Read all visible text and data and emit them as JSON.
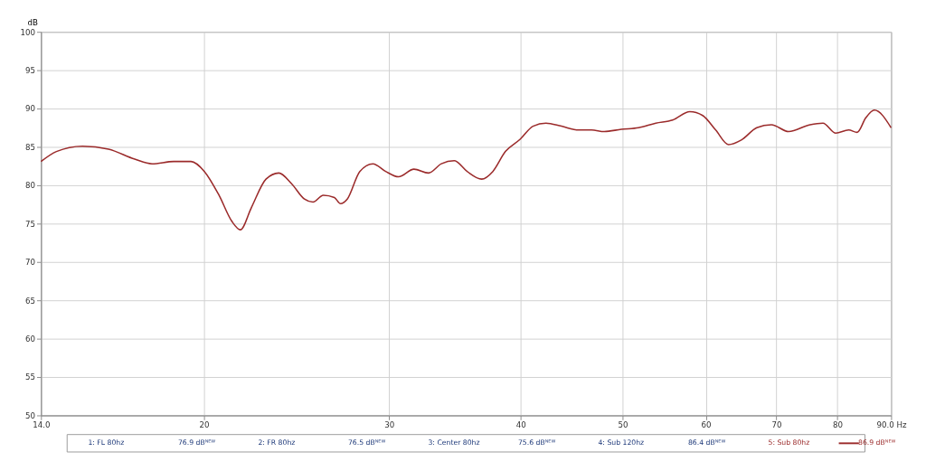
{
  "chart_data": {
    "type": "line",
    "ylabel": "dB",
    "x": [
      14.0,
      14.48,
      15.33,
      16.23,
      17.19,
      17.85,
      18.72,
      19.44,
      20.02,
      20.67,
      21.26,
      21.66,
      22.19,
      22.91,
      23.56,
      24.23,
      24.92,
      25.39,
      25.97,
      26.61,
      26.97,
      27.37,
      28.13,
      28.95,
      29.77,
      30.62,
      31.67,
      32.69,
      33.63,
      34.59,
      35.58,
      36.73,
      37.64,
      38.69,
      39.96,
      41.1,
      42.28,
      43.74,
      45.41,
      46.71,
      48.04,
      49.88,
      51.79,
      53.77,
      55.8,
      57.93,
      59.58,
      61.3,
      63.04,
      64.84,
      67.07,
      69.25,
      71.91,
      75.37,
      77.52,
      79.73,
      82.01,
      83.56,
      85.15,
      86.76,
      90.0
    ],
    "series": [
      {
        "name": "5: Sub 80hz",
        "color": "#9b2b2b",
        "values": [
          83.1,
          84.4,
          85.1,
          84.7,
          83.4,
          82.8,
          83.1,
          83.1,
          81.8,
          78.7,
          75.3,
          74.2,
          77.1,
          80.8,
          81.6,
          80.2,
          78.2,
          77.8,
          78.7,
          78.4,
          77.6,
          78.2,
          81.8,
          82.8,
          81.8,
          81.1,
          82.1,
          81.6,
          82.8,
          83.2,
          81.8,
          80.8,
          81.8,
          84.4,
          86.0,
          87.7,
          88.1,
          87.7,
          87.2,
          87.2,
          87.0,
          87.3,
          87.5,
          88.1,
          88.5,
          89.6,
          89.1,
          87.2,
          85.3,
          85.9,
          87.5,
          87.9,
          87.0,
          87.9,
          88.1,
          86.8,
          87.2,
          86.9,
          88.8,
          89.8,
          87.5
        ]
      }
    ],
    "xlim": [
      14,
      90
    ],
    "log": "x",
    "xticks": [
      {
        "value": 14,
        "label": "14.0"
      },
      20,
      30,
      40,
      50,
      60,
      70,
      80,
      {
        "value": 90,
        "label": "90.0 Hz"
      }
    ],
    "ylim": [
      50,
      100
    ],
    "yticks": [
      50,
      55,
      60,
      65,
      70,
      75,
      80,
      85,
      90,
      95,
      100
    ],
    "grid": true,
    "legend": "bottom",
    "line_style": "solid",
    "marker": "none",
    "annotations": [
      "1: FL 80hz",
      "76.9 dBᴺᴱᵂ",
      "2: FR 80hz",
      "76.5 dBᴺᴱᵂ",
      "3: Center 80hz",
      "75.6 dBᴺᴱᵂ",
      "4: Sub 120hz",
      "86.4 dBᴺᴱᵂ",
      "86.9 dBᴺᴱᵂ"
    ]
  }
}
